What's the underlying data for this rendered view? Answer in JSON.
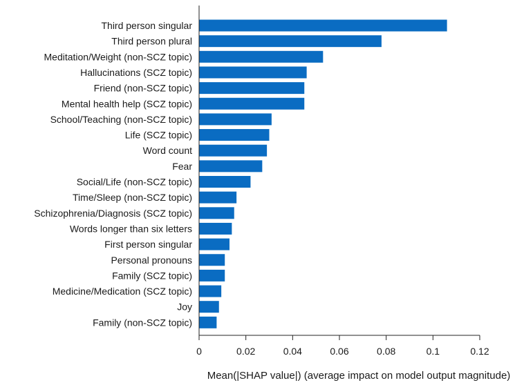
{
  "chart_data": {
    "type": "bar",
    "orientation": "horizontal",
    "categories": [
      "Third person singular",
      "Third person plural",
      "Meditation/Weight (non-SCZ topic)",
      "Hallucinations (SCZ topic)",
      "Friend (non-SCZ topic)",
      "Mental health help (SCZ topic)",
      "School/Teaching (non-SCZ topic)",
      "Life (SCZ topic)",
      "Word count",
      "Fear",
      "Social/Life (non-SCZ topic)",
      "Time/Sleep (non-SCZ topic)",
      "Schizophrenia/Diagnosis (SCZ topic)",
      "Words longer than six letters",
      "First person singular",
      "Personal pronouns",
      "Family (SCZ topic)",
      "Medicine/Medication (SCZ topic)",
      "Joy",
      "Family (non-SCZ topic)"
    ],
    "values": [
      0.106,
      0.078,
      0.053,
      0.046,
      0.045,
      0.045,
      0.031,
      0.03,
      0.029,
      0.027,
      0.022,
      0.016,
      0.015,
      0.014,
      0.013,
      0.011,
      0.011,
      0.0095,
      0.0085,
      0.0075
    ],
    "xlim": [
      0,
      0.12
    ],
    "xticks": [
      "0",
      "0.02",
      "0.04",
      "0.06",
      "0.08",
      "0.1",
      "0.12"
    ],
    "xlabel": "Mean(|SHAP value|) (average impact on model output magnitude)",
    "ylabel": "",
    "title": "",
    "bar_color": "#0a6cc2",
    "grid": false
  }
}
